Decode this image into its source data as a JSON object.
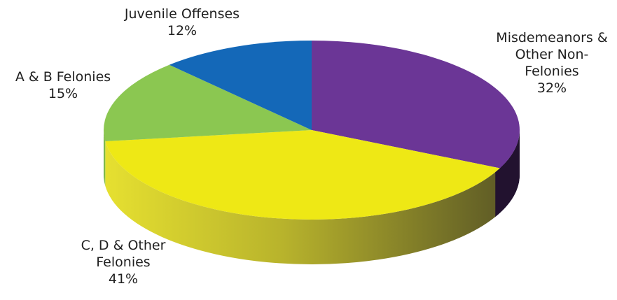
{
  "chart_data": {
    "type": "pie",
    "variant": "3d",
    "slices": [
      {
        "label_lines": [
          "Misdemeanors &",
          "Other Non-",
          "Felonies"
        ],
        "pct_text": "32%",
        "value": 32,
        "color": "#6b3696",
        "side_color": "#2e1a4a"
      },
      {
        "label_lines": [
          "C, D & Other",
          "Felonies"
        ],
        "pct_text": "41%",
        "value": 41,
        "color": "#eee815",
        "side_color": "#86822a"
      },
      {
        "label_lines": [
          "A & B Felonies"
        ],
        "pct_text": "15%",
        "value": 15,
        "color": "#8bc751",
        "side_color": "#5a8a2c"
      },
      {
        "label_lines": [
          "Juvenile Offenses"
        ],
        "pct_text": "12%",
        "value": 12,
        "color": "#1468b8",
        "side_color": "#0d4a84"
      }
    ],
    "legend": "none",
    "start_angle_deg": -90,
    "direction": "clockwise"
  }
}
